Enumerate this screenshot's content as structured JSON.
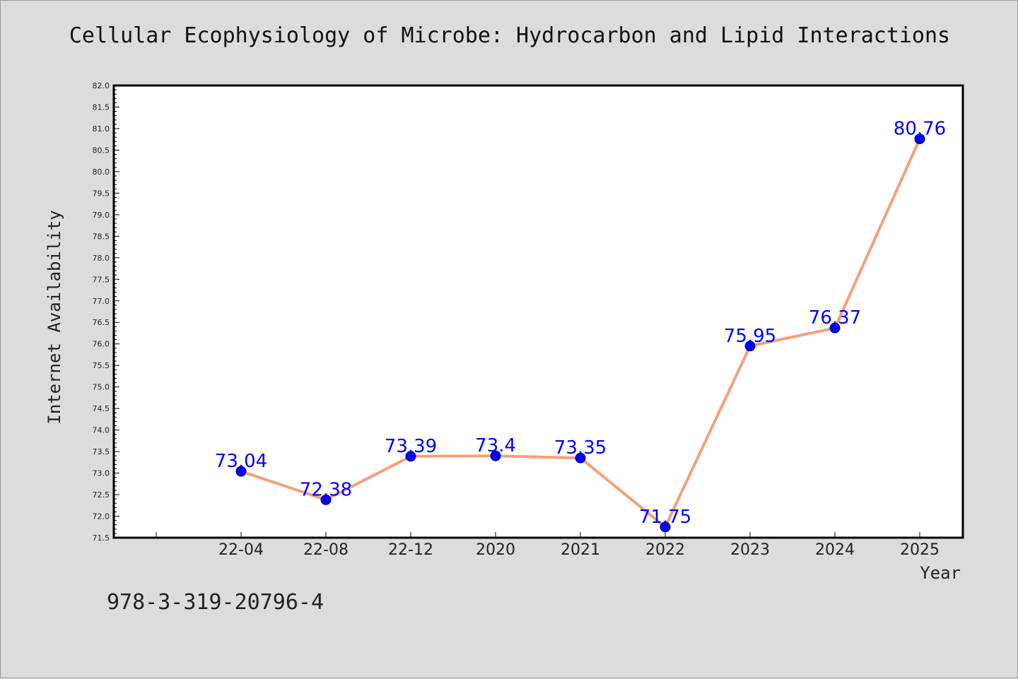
{
  "chart_data": {
    "type": "line",
    "title": "Cellular Ecophysiology of Microbe: Hydrocarbon and Lipid Interactions",
    "xlabel": "Year",
    "ylabel": "Internet Availability",
    "categories": [
      "22-04",
      "22-08",
      "22-12",
      "2020",
      "2021",
      "2022",
      "2023",
      "2024",
      "2025"
    ],
    "series": [
      {
        "values": [
          73.04,
          72.38,
          73.39,
          73.4,
          73.35,
          71.75,
          75.95,
          76.37,
          80.76
        ],
        "labels": [
          "73.04",
          "72.38",
          "73.39",
          "73.4",
          "73.35",
          "71.75",
          "75.95",
          "76.37",
          "80.76"
        ]
      }
    ],
    "ylim": [
      71.5,
      82.0
    ],
    "yticks": [
      "71.5",
      "72.0",
      "72.5",
      "73.0",
      "73.5",
      "74.0",
      "74.5",
      "75.0",
      "75.5",
      "76.0",
      "76.5",
      "77.0",
      "77.5",
      "78.0",
      "78.5",
      "79.0",
      "79.5",
      "80.0",
      "80.5",
      "81.0",
      "81.5",
      "82.0"
    ],
    "grid": false,
    "legend": "none",
    "colors": {
      "line": "#f4a07c",
      "marker": "#0000ff",
      "data_label": "#0000ff",
      "background": "#dcdcdc",
      "plot_area": "#ffffff"
    }
  },
  "footer": {
    "code": "978-3-319-20796-4"
  }
}
